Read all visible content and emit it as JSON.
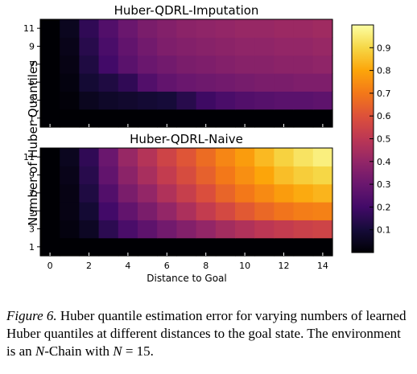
{
  "chart_data": {
    "type": "heatmap",
    "ylabel": "Number of Huber Quantiles",
    "xlabel": "Distance to Goal",
    "x_ticks": [
      "0",
      "2",
      "4",
      "6",
      "8",
      "10",
      "12",
      "14"
    ],
    "y_ticks": [
      "1",
      "3",
      "5",
      "7",
      "9",
      "11"
    ],
    "colorbar": {
      "ticks": [
        "0.1",
        "0.2",
        "0.3",
        "0.4",
        "0.5",
        "0.6",
        "0.7",
        "0.8",
        "0.9"
      ],
      "range": [
        0.0,
        1.0
      ],
      "colormap": "inferno"
    },
    "panels": [
      {
        "title": "Huber-QDRL-Imputation",
        "x": [
          0,
          1,
          2,
          3,
          4,
          5,
          6,
          7,
          8,
          9,
          10,
          11,
          12,
          13,
          14
        ],
        "y": [
          1,
          3,
          5,
          7,
          9,
          11
        ],
        "values": [
          [
            0.0,
            0.0,
            0.0,
            0.0,
            0.0,
            0.0,
            0.0,
            0.0,
            0.0,
            0.0,
            0.0,
            0.0,
            0.0,
            0.0,
            0.0
          ],
          [
            0.0,
            0.01,
            0.05,
            0.07,
            0.08,
            0.09,
            0.1,
            0.14,
            0.19,
            0.22,
            0.24,
            0.25,
            0.26,
            0.26,
            0.27
          ],
          [
            0.0,
            0.02,
            0.09,
            0.12,
            0.16,
            0.24,
            0.28,
            0.3,
            0.31,
            0.32,
            0.33,
            0.34,
            0.34,
            0.35,
            0.35
          ],
          [
            0.0,
            0.03,
            0.12,
            0.2,
            0.26,
            0.3,
            0.32,
            0.34,
            0.35,
            0.36,
            0.37,
            0.37,
            0.38,
            0.38,
            0.39
          ],
          [
            0.0,
            0.04,
            0.14,
            0.22,
            0.28,
            0.32,
            0.35,
            0.36,
            0.37,
            0.38,
            0.39,
            0.39,
            0.4,
            0.4,
            0.41
          ],
          [
            0.0,
            0.05,
            0.16,
            0.24,
            0.3,
            0.34,
            0.36,
            0.38,
            0.39,
            0.4,
            0.41,
            0.41,
            0.42,
            0.42,
            0.43
          ]
        ]
      },
      {
        "title": "Huber-QDRL-Naive",
        "x": [
          0,
          1,
          2,
          3,
          4,
          5,
          6,
          7,
          8,
          9,
          10,
          11,
          12,
          13,
          14
        ],
        "y": [
          1,
          3,
          5,
          7,
          9,
          11
        ],
        "values": [
          [
            0.0,
            0.0,
            0.0,
            0.0,
            0.0,
            0.0,
            0.0,
            0.0,
            0.0,
            0.0,
            0.0,
            0.0,
            0.0,
            0.0,
            0.0
          ],
          [
            0.0,
            0.02,
            0.06,
            0.15,
            0.22,
            0.27,
            0.32,
            0.36,
            0.4,
            0.44,
            0.47,
            0.5,
            0.52,
            0.54,
            0.55
          ],
          [
            0.0,
            0.03,
            0.09,
            0.2,
            0.28,
            0.34,
            0.4,
            0.46,
            0.52,
            0.57,
            0.62,
            0.66,
            0.69,
            0.71,
            0.72
          ],
          [
            0.0,
            0.03,
            0.12,
            0.24,
            0.34,
            0.4,
            0.47,
            0.53,
            0.59,
            0.65,
            0.7,
            0.74,
            0.78,
            0.81,
            0.83
          ],
          [
            0.0,
            0.04,
            0.14,
            0.28,
            0.38,
            0.45,
            0.52,
            0.58,
            0.64,
            0.7,
            0.75,
            0.8,
            0.85,
            0.88,
            0.9
          ],
          [
            0.0,
            0.05,
            0.16,
            0.3,
            0.41,
            0.48,
            0.55,
            0.61,
            0.67,
            0.73,
            0.78,
            0.84,
            0.89,
            0.93,
            0.96
          ]
        ]
      }
    ]
  },
  "caption": {
    "label": "Figure 6.",
    "text_1": " Huber quantile estimation error for varying numbers of learned Huber quantiles at different distances to the goal state. The environment is an ",
    "n_var": "N",
    "text_2": "-Chain with ",
    "n_var_2": "N",
    "equals": " = ",
    "n_value": "15",
    "end": "."
  }
}
